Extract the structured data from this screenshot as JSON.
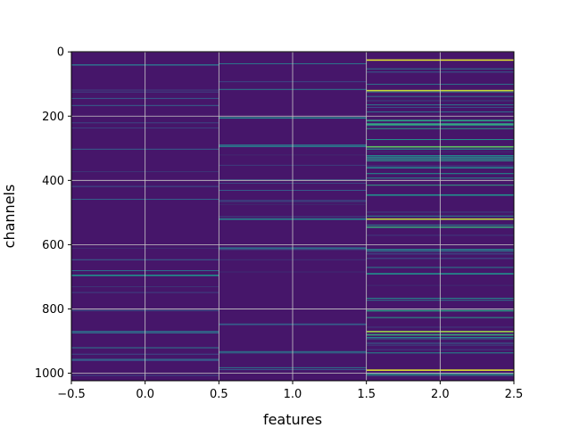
{
  "chart_data": {
    "type": "heatmap",
    "title": "",
    "xlabel": "features",
    "ylabel": "channels",
    "xlim": [
      -0.5,
      2.5
    ],
    "ylim": [
      1023.5,
      -0.5
    ],
    "n_columns": 3,
    "n_rows": 1024,
    "colormap": "viridis",
    "grid": true,
    "x_ticks": [
      -0.5,
      0.0,
      0.5,
      1.0,
      1.5,
      2.0,
      2.5
    ],
    "x_tick_labels": [
      "−0.5",
      "0.0",
      "0.5",
      "1.0",
      "1.5",
      "2.0",
      "2.5"
    ],
    "y_ticks": [
      0,
      200,
      400,
      600,
      800,
      1000
    ],
    "y_tick_labels": [
      "0",
      "200",
      "400",
      "600",
      "800",
      "1000"
    ],
    "colors": {
      "low": "#440154",
      "base": "#46166a",
      "grid": "#c8c8c8"
    },
    "bright_rows": [
      {
        "column": 2,
        "channel": 25,
        "value": 0.95
      },
      {
        "column": 2,
        "channel": 120,
        "value": 0.92
      },
      {
        "column": 2,
        "channel": 213,
        "value": 0.55
      },
      {
        "column": 2,
        "channel": 225,
        "value": 0.6
      },
      {
        "column": 2,
        "channel": 295,
        "value": 0.75
      },
      {
        "column": 2,
        "channel": 360,
        "value": 0.45
      },
      {
        "column": 2,
        "channel": 445,
        "value": 0.5
      },
      {
        "column": 2,
        "channel": 520,
        "value": 0.9
      },
      {
        "column": 2,
        "channel": 545,
        "value": 0.6
      },
      {
        "column": 2,
        "channel": 615,
        "value": 0.45
      },
      {
        "column": 2,
        "channel": 690,
        "value": 0.5
      },
      {
        "column": 2,
        "channel": 805,
        "value": 0.55
      },
      {
        "column": 2,
        "channel": 870,
        "value": 0.85
      },
      {
        "column": 2,
        "channel": 880,
        "value": 0.6
      },
      {
        "column": 2,
        "channel": 990,
        "value": 0.95
      },
      {
        "column": 1,
        "channel": 205,
        "value": 0.45
      },
      {
        "column": 1,
        "channel": 290,
        "value": 0.4
      },
      {
        "column": 1,
        "channel": 520,
        "value": 0.45
      },
      {
        "column": 1,
        "channel": 610,
        "value": 0.35
      },
      {
        "column": 0,
        "channel": 40,
        "value": 0.35
      },
      {
        "column": 0,
        "channel": 695,
        "value": 0.5
      },
      {
        "column": 0,
        "channel": 870,
        "value": 0.35
      }
    ]
  }
}
